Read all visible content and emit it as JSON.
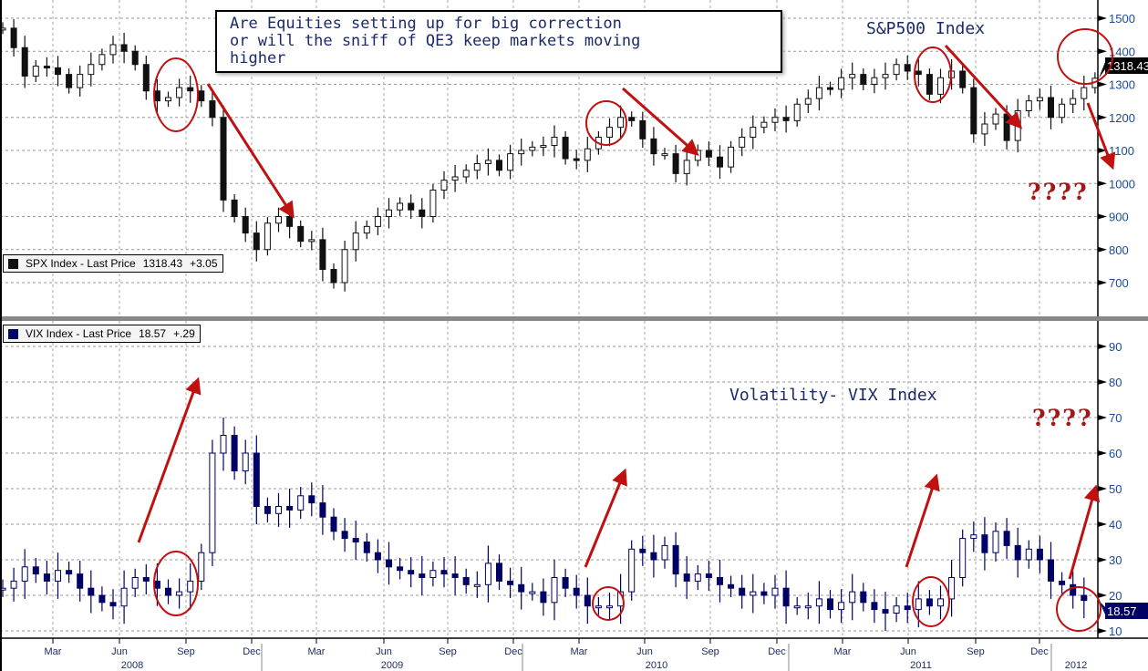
{
  "chart_data": [
    {
      "type": "candlestick",
      "title": "S&P500 Index",
      "legend": {
        "name": "SPX Index - Last Price",
        "last": "1318.43",
        "change": "+3.05",
        "color": "#111111"
      },
      "last_tag": "1318.43",
      "ylim": [
        600,
        1500
      ],
      "yticks": [
        700,
        800,
        900,
        1000,
        1100,
        1200,
        1300,
        1400,
        1500
      ],
      "closes": [
        1470,
        1411,
        1325,
        1355,
        1350,
        1330,
        1290,
        1330,
        1360,
        1390,
        1420,
        1400,
        1360,
        1280,
        1250,
        1260,
        1290,
        1280,
        1250,
        1200,
        950,
        900,
        850,
        800,
        880,
        900,
        870,
        825,
        830,
        740,
        700,
        800,
        850,
        870,
        900,
        920,
        940,
        920,
        900,
        980,
        1010,
        1020,
        1040,
        1060,
        1070,
        1040,
        1090,
        1100,
        1110,
        1115,
        1140,
        1075,
        1070,
        1105,
        1140,
        1170,
        1200,
        1190,
        1135,
        1090,
        1090,
        1030,
        1070,
        1100,
        1080,
        1050,
        1110,
        1140,
        1170,
        1185,
        1200,
        1190,
        1240,
        1257,
        1290,
        1285,
        1320,
        1330,
        1300,
        1320,
        1330,
        1360,
        1340,
        1330,
        1270,
        1320,
        1340,
        1290,
        1150,
        1180,
        1210,
        1130,
        1220,
        1250,
        1260,
        1200,
        1240,
        1257,
        1290,
        1318.43
      ],
      "annotation_box": [
        "Are Equities setting up for big correction",
        "or will the sniff of QE3 keep markets moving",
        "higher"
      ],
      "question": "????"
    },
    {
      "type": "candlestick",
      "title": "Volatility- VIX Index",
      "legend": {
        "name": "VIX Index - Last Price",
        "last": "18.57",
        "change": "+.29",
        "color": "#000066"
      },
      "last_tag": "18.57",
      "ylim": [
        10,
        90
      ],
      "yticks": [
        10,
        20,
        30,
        40,
        50,
        60,
        70,
        80,
        90
      ],
      "closes": [
        22,
        24,
        28,
        26,
        24,
        27,
        26,
        22,
        20,
        18,
        17,
        22,
        25,
        24,
        22,
        20,
        21,
        24,
        32,
        60,
        65,
        55,
        60,
        45,
        43,
        45,
        44,
        48,
        46,
        42,
        38,
        36,
        35,
        32,
        30,
        28,
        27,
        26,
        25,
        27,
        26,
        25,
        23,
        23,
        29,
        24,
        23,
        21,
        21,
        18,
        25,
        22,
        20,
        17,
        17,
        17,
        21,
        33,
        32,
        30,
        34,
        26,
        24,
        26,
        25,
        23,
        22,
        20,
        21,
        20,
        22,
        17,
        17,
        17,
        19,
        16,
        18,
        21,
        18,
        16,
        15,
        17,
        16,
        19,
        17,
        19,
        25,
        36,
        37,
        32,
        38,
        34,
        30,
        33,
        30,
        24,
        23,
        20,
        18.57
      ],
      "question": "????"
    }
  ],
  "x_axis": {
    "months": [
      "Mar",
      "Jun",
      "Sep",
      "Dec",
      "Mar",
      "Jun",
      "Sep",
      "Dec",
      "Mar",
      "Jun",
      "Sep",
      "Dec",
      "Mar",
      "Jun",
      "Sep",
      "Dec"
    ],
    "years": [
      "2008",
      "2009",
      "2010",
      "2011",
      "2012"
    ]
  },
  "colors": {
    "annotation": "#c01010",
    "spx": "#111111",
    "vix": "#000066",
    "axis_label": "#1a4a9a"
  }
}
